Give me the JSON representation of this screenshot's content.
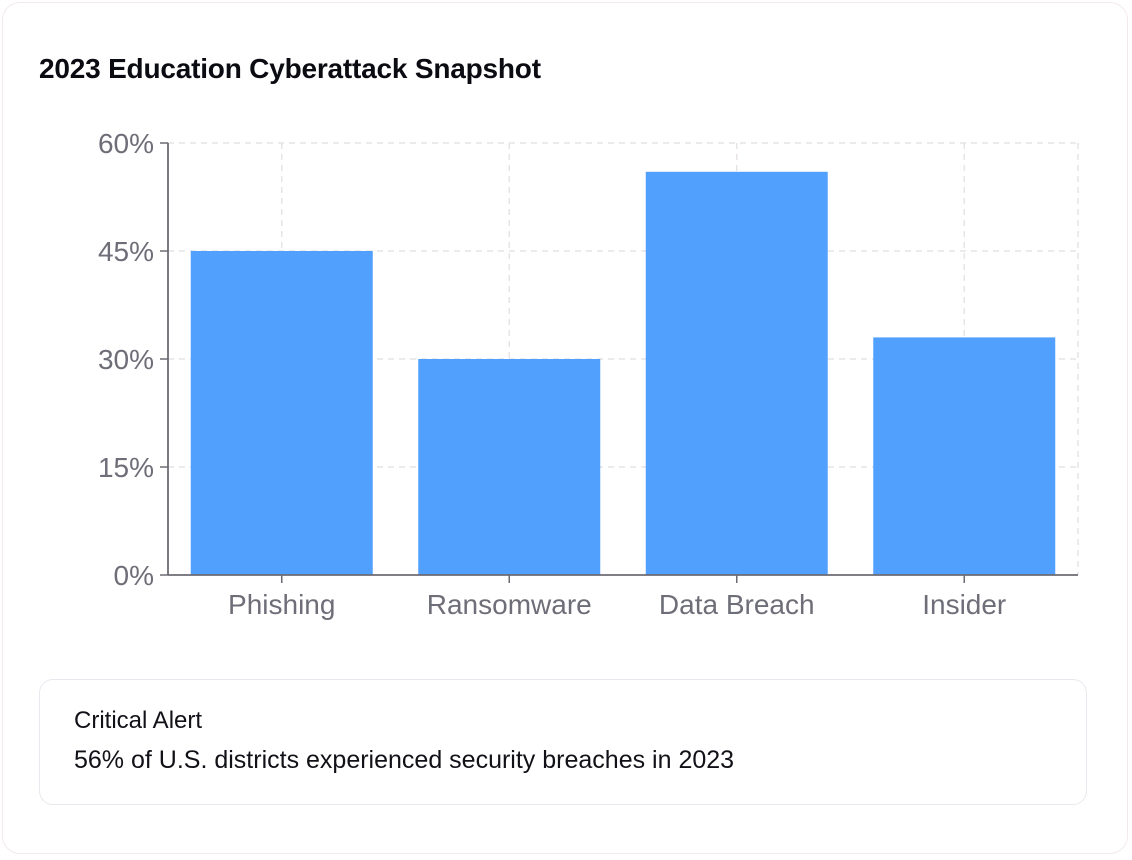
{
  "page": {
    "title": "2023 Education Cyberattack Snapshot"
  },
  "chart_data": {
    "type": "bar",
    "title": "2023 Education Cyberattack Snapshot",
    "categories": [
      "Phishing",
      "Ransomware",
      "Data Breach",
      "Insider"
    ],
    "values": [
      45,
      30,
      56,
      33
    ],
    "unit": "%",
    "ylim": [
      0,
      60
    ],
    "yticks": [
      0,
      15,
      30,
      45,
      60
    ],
    "ytick_labels": [
      "0%",
      "15%",
      "30%",
      "45%",
      "60%"
    ],
    "xlabel": "",
    "ylabel": "",
    "grid": true,
    "bar_color": "#52a0fd",
    "grid_color": "#e7e3e6"
  },
  "alert": {
    "title": "Critical Alert",
    "text": "56% of U.S. districts experienced security breaches in 2023"
  }
}
